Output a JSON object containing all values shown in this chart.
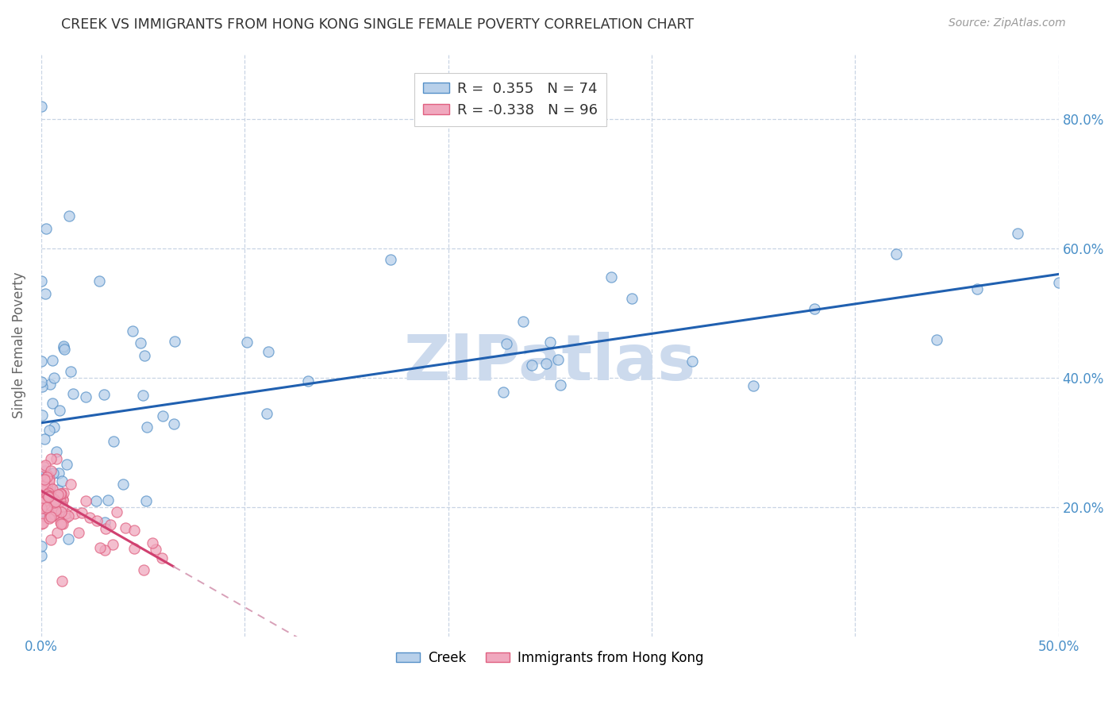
{
  "title": "CREEK VS IMMIGRANTS FROM HONG KONG SINGLE FEMALE POVERTY CORRELATION CHART",
  "source": "Source: ZipAtlas.com",
  "ylabel": "Single Female Poverty",
  "ytick_values": [
    0.2,
    0.4,
    0.6,
    0.8
  ],
  "xlim": [
    0.0,
    0.5
  ],
  "ylim": [
    0.0,
    0.9
  ],
  "legend1_label": "Creek",
  "legend2_label": "Immigrants from Hong Kong",
  "R1": 0.355,
  "N1": 74,
  "R2": -0.338,
  "N2": 96,
  "blue_fill": "#b8d0ea",
  "blue_edge": "#5590c8",
  "pink_fill": "#f0a8be",
  "pink_edge": "#e06080",
  "blue_line": "#2060b0",
  "pink_line_solid": "#d04070",
  "pink_line_dash": "#d8a0b8",
  "watermark": "ZIPatlas",
  "watermark_color": "#ccdaed",
  "background_color": "#ffffff",
  "grid_color": "#c8d4e4",
  "tick_color": "#4a90c8",
  "ylabel_color": "#666666",
  "title_color": "#333333",
  "source_color": "#999999",
  "blue_intercept": 0.33,
  "blue_slope": 0.46,
  "pink_intercept": 0.225,
  "pink_slope": -1.8
}
